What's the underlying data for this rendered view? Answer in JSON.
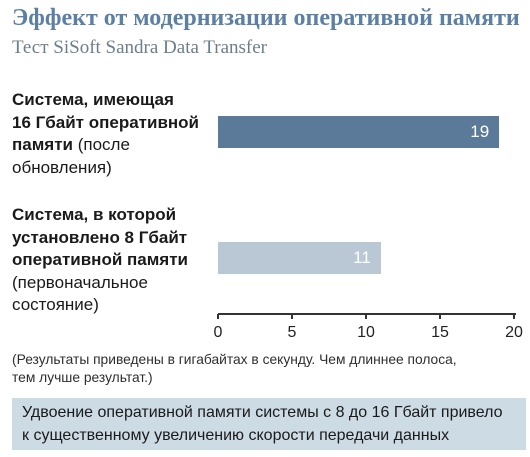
{
  "chart_data": {
    "type": "bar",
    "orientation": "horizontal",
    "title": "Эффект от модернизации оперативной памяти",
    "subtitle": "Тест SiSoft Sandra Data Transfer",
    "categories": [
      {
        "lines": [
          [
            {
              "text": "Система, имеющая",
              "bold": true
            }
          ],
          [
            {
              "text": "16 Гбайт оперативной",
              "bold": true
            }
          ],
          [
            {
              "text": "памяти",
              "bold": true
            },
            {
              "text": " (после",
              "bold": false
            }
          ],
          [
            {
              "text": "обновления)",
              "bold": false
            }
          ]
        ]
      },
      {
        "lines": [
          [
            {
              "text": "Система, в которой",
              "bold": true
            }
          ],
          [
            {
              "text": "установлено 8 Гбайт",
              "bold": true
            }
          ],
          [
            {
              "text": "оперативной памяти",
              "bold": true
            }
          ],
          [
            {
              "text": "(первоначальное",
              "bold": false
            }
          ],
          [
            {
              "text": "состояние)",
              "bold": false
            }
          ]
        ]
      }
    ],
    "values": [
      19,
      11
    ],
    "xlim": [
      0,
      20
    ],
    "xticks": [
      0,
      5,
      10,
      15,
      20
    ],
    "colors": [
      "#5b7a99",
      "#b9c8d4"
    ],
    "grid": false,
    "legend": "none"
  },
  "notes": {
    "footnote_lines": [
      "(Результаты приведены в гигабайтах в секунду. Чем длиннее полоса,",
      "тем лучше результат.)"
    ],
    "conclusion_lines": [
      "Удвоение оперативной памяти системы с 8 до 16 Гбайт привело",
      "к существенному увеличению скорости передачи данных"
    ]
  }
}
